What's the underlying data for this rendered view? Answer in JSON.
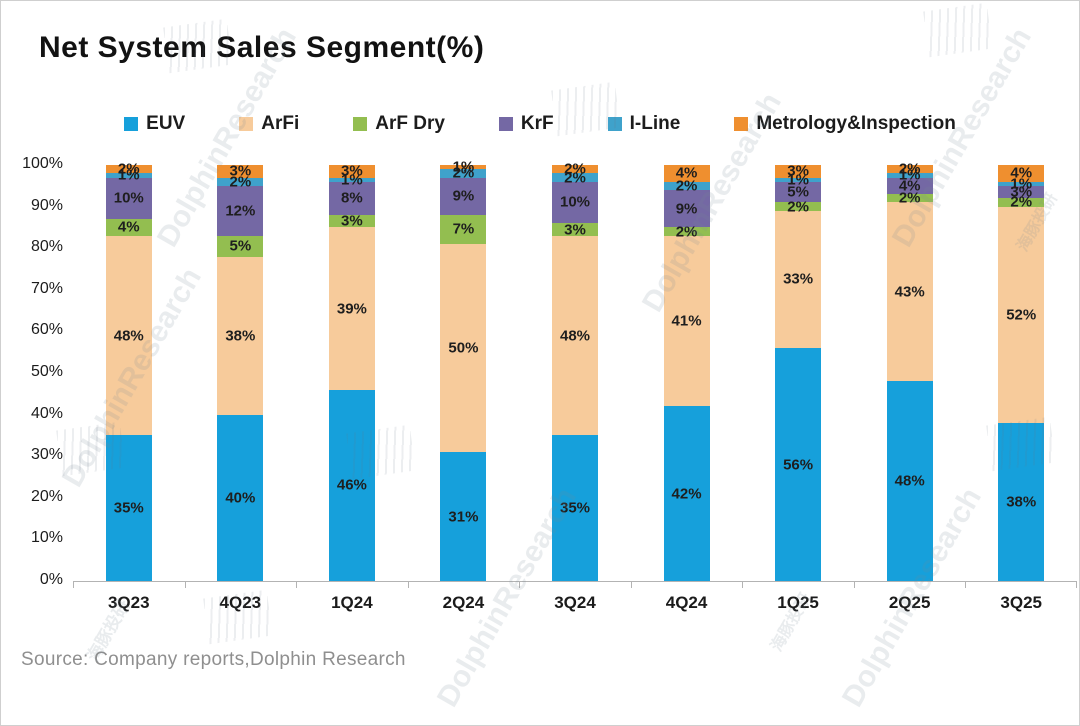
{
  "page": {
    "source": "Source: Company reports,Dolphin Research"
  },
  "watermark": {
    "brand": "DolphinResearch",
    "brand_cn": "海豚投研"
  },
  "chart_data": {
    "type": "bar",
    "stacked": true,
    "unit": "%",
    "title": "Net System Sales Segment(%)",
    "legend_position": "top",
    "grid": false,
    "ylim": [
      0,
      100
    ],
    "yticks": [
      "0%",
      "10%",
      "20%",
      "30%",
      "40%",
      "50%",
      "60%",
      "70%",
      "80%",
      "90%",
      "100%"
    ],
    "categories": [
      "3Q23",
      "4Q23",
      "1Q24",
      "2Q24",
      "3Q24",
      "4Q24",
      "1Q25",
      "2Q25",
      "3Q25"
    ],
    "series": [
      {
        "name": "EUV",
        "color": "#16A0DB",
        "values": [
          35,
          40,
          46,
          31,
          35,
          42,
          56,
          48,
          38
        ]
      },
      {
        "name": "ArFi",
        "color": "#F7CB9B",
        "values": [
          48,
          38,
          39,
          50,
          48,
          41,
          33,
          43,
          52
        ]
      },
      {
        "name": "ArF Dry",
        "color": "#93BE50",
        "values": [
          4,
          5,
          3,
          7,
          3,
          2,
          2,
          2,
          2
        ]
      },
      {
        "name": "KrF",
        "color": "#7468A4",
        "values": [
          10,
          12,
          8,
          9,
          10,
          9,
          5,
          4,
          3
        ]
      },
      {
        "name": "I-Line",
        "color": "#3FA2CB",
        "values": [
          1,
          2,
          1,
          2,
          2,
          2,
          1,
          1,
          1
        ]
      },
      {
        "name": "Metrology&Inspection",
        "color": "#EF8F2F",
        "values": [
          2,
          3,
          3,
          1,
          2,
          4,
          3,
          2,
          4
        ]
      }
    ]
  }
}
